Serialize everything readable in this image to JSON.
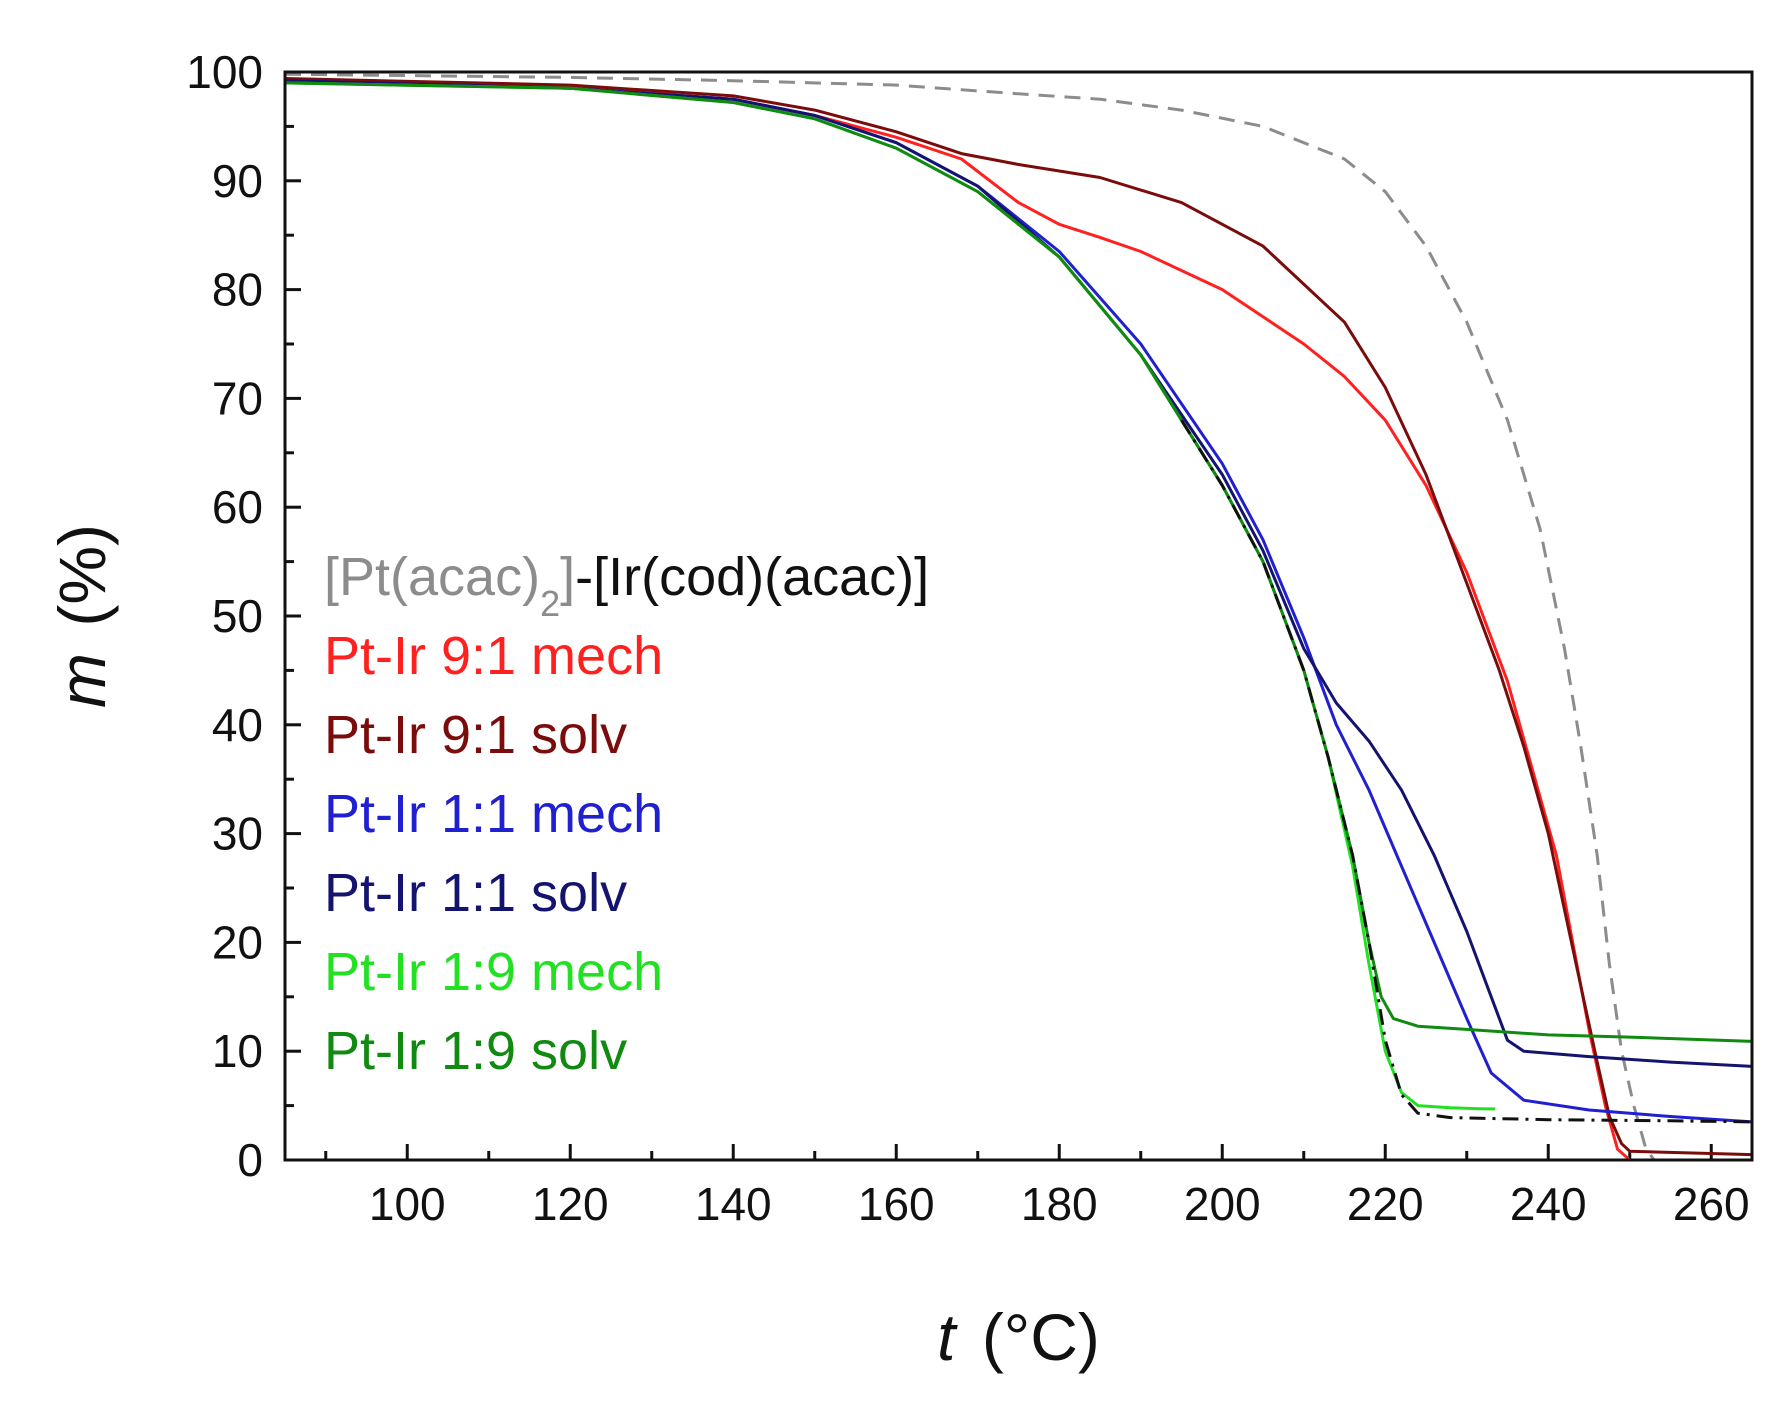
{
  "chart_data": {
    "type": "line",
    "xlabel_var": "t",
    "xlabel_unit": "(°C)",
    "ylabel_var": "m",
    "ylabel_unit": "(%)",
    "xlim": [
      85,
      265
    ],
    "ylim": [
      0,
      100
    ],
    "xticks": [
      100,
      120,
      140,
      160,
      180,
      200,
      220,
      240,
      260
    ],
    "yticks": [
      0,
      10,
      20,
      30,
      40,
      50,
      60,
      70,
      80,
      90,
      100
    ],
    "grid": false,
    "legend_position": "left",
    "legend": [
      {
        "parts": [
          {
            "text": "[Pt(acac)",
            "color": "#8c8c8c"
          },
          {
            "text": "2",
            "color": "#8c8c8c",
            "sub": true
          },
          {
            "text": "]",
            "color": "#8c8c8c"
          },
          {
            "text": "-[Ir(cod)(acac)]",
            "color": "#111111"
          }
        ]
      },
      {
        "parts": [
          {
            "text": "Pt-Ir 9:1 mech",
            "color": "#ff2020"
          }
        ]
      },
      {
        "parts": [
          {
            "text": "Pt-Ir 9:1 solv",
            "color": "#7a0c0c"
          }
        ]
      },
      {
        "parts": [
          {
            "text": "Pt-Ir 1:1 mech",
            "color": "#2020d0"
          }
        ]
      },
      {
        "parts": [
          {
            "text": "Pt-Ir 1:1 solv",
            "color": "#141470"
          }
        ]
      },
      {
        "parts": [
          {
            "text": "Pt-Ir 1:9 mech",
            "color": "#22e022"
          }
        ]
      },
      {
        "parts": [
          {
            "text": "Pt-Ir 1:9 solv",
            "color": "#108a10"
          }
        ]
      }
    ],
    "series": [
      {
        "color": "#8c8c8c",
        "style": "dashed",
        "points": [
          [
            85,
            99.8
          ],
          [
            120,
            99.5
          ],
          [
            140,
            99.2
          ],
          [
            160,
            98.8
          ],
          [
            175,
            98
          ],
          [
            185,
            97.5
          ],
          [
            195,
            96.5
          ],
          [
            205,
            95
          ],
          [
            215,
            92
          ],
          [
            220,
            89
          ],
          [
            225,
            84
          ],
          [
            230,
            77
          ],
          [
            235,
            68
          ],
          [
            239,
            58
          ],
          [
            242,
            47
          ],
          [
            244,
            38
          ],
          [
            246,
            28
          ],
          [
            247.5,
            18
          ],
          [
            249,
            10
          ],
          [
            250.5,
            5
          ],
          [
            252,
            1
          ],
          [
            253,
            0
          ],
          [
            265,
            0
          ]
        ]
      },
      {
        "color": "#ff2020",
        "style": "solid",
        "points": [
          [
            85,
            99.3
          ],
          [
            120,
            98.6
          ],
          [
            140,
            97.5
          ],
          [
            150,
            96
          ],
          [
            160,
            94
          ],
          [
            168,
            92
          ],
          [
            175,
            88
          ],
          [
            180,
            86
          ],
          [
            185,
            84.8
          ],
          [
            190,
            83.5
          ],
          [
            200,
            80
          ],
          [
            210,
            75
          ],
          [
            215,
            72
          ],
          [
            220,
            68
          ],
          [
            225,
            62
          ],
          [
            230,
            54
          ],
          [
            235,
            44
          ],
          [
            238,
            36
          ],
          [
            241,
            28
          ],
          [
            243,
            20
          ],
          [
            245,
            12
          ],
          [
            247,
            5
          ],
          [
            248.5,
            1
          ],
          [
            250,
            0
          ],
          [
            265,
            0
          ]
        ]
      },
      {
        "color": "#7a0c0c",
        "style": "solid",
        "points": [
          [
            85,
            99.4
          ],
          [
            120,
            98.8
          ],
          [
            140,
            97.8
          ],
          [
            150,
            96.5
          ],
          [
            160,
            94.5
          ],
          [
            168,
            92.5
          ],
          [
            175,
            91.5
          ],
          [
            185,
            90.3
          ],
          [
            195,
            88
          ],
          [
            205,
            84
          ],
          [
            215,
            77
          ],
          [
            220,
            71
          ],
          [
            225,
            63
          ],
          [
            230,
            53
          ],
          [
            234,
            45
          ],
          [
            237,
            38
          ],
          [
            240,
            30
          ],
          [
            242,
            23
          ],
          [
            244,
            16
          ],
          [
            246,
            9
          ],
          [
            247.5,
            4
          ],
          [
            249,
            1.5
          ],
          [
            250,
            0.8
          ],
          [
            265,
            0.5
          ]
        ]
      },
      {
        "color": "#2020d0",
        "style": "solid",
        "points": [
          [
            85,
            99.2
          ],
          [
            120,
            98.5
          ],
          [
            140,
            97.5
          ],
          [
            150,
            96
          ],
          [
            160,
            93.5
          ],
          [
            170,
            89.5
          ],
          [
            180,
            83.5
          ],
          [
            190,
            75
          ],
          [
            200,
            64
          ],
          [
            205,
            57
          ],
          [
            210,
            48
          ],
          [
            214,
            40
          ],
          [
            218,
            34
          ],
          [
            222,
            27
          ],
          [
            226,
            20
          ],
          [
            230,
            13
          ],
          [
            233,
            8
          ],
          [
            237,
            5.5
          ],
          [
            245,
            4.6
          ],
          [
            255,
            4
          ],
          [
            265,
            3.5
          ]
        ]
      },
      {
        "color": "#141470",
        "style": "solid",
        "points": [
          [
            85,
            99.2
          ],
          [
            120,
            98.5
          ],
          [
            140,
            97.5
          ],
          [
            150,
            96
          ],
          [
            160,
            93.5
          ],
          [
            170,
            89.5
          ],
          [
            180,
            83
          ],
          [
            190,
            74
          ],
          [
            200,
            63
          ],
          [
            205,
            56
          ],
          [
            210,
            47
          ],
          [
            214,
            42
          ],
          [
            218,
            38.5
          ],
          [
            222,
            34
          ],
          [
            226,
            28
          ],
          [
            230,
            21
          ],
          [
            233,
            15
          ],
          [
            235,
            11
          ],
          [
            237,
            10
          ],
          [
            245,
            9.5
          ],
          [
            255,
            9
          ],
          [
            265,
            8.6
          ]
        ]
      },
      {
        "color": "#22e022",
        "style": "solid",
        "points": [
          [
            85,
            99
          ],
          [
            120,
            98.5
          ],
          [
            140,
            97.2
          ],
          [
            150,
            95.7
          ],
          [
            160,
            93
          ],
          [
            170,
            89
          ],
          [
            180,
            83
          ],
          [
            190,
            74
          ],
          [
            200,
            62
          ],
          [
            205,
            55
          ],
          [
            210,
            45
          ],
          [
            213,
            37
          ],
          [
            216,
            27
          ],
          [
            218,
            18
          ],
          [
            220,
            10
          ],
          [
            222,
            6.2
          ],
          [
            224,
            5
          ],
          [
            228,
            4.8
          ],
          [
            232,
            4.7
          ],
          [
            233.5,
            4.7
          ]
        ]
      },
      {
        "color": "#108a10",
        "style": "solid",
        "points": [
          [
            85,
            99
          ],
          [
            120,
            98.5
          ],
          [
            140,
            97.2
          ],
          [
            150,
            95.7
          ],
          [
            160,
            93
          ],
          [
            170,
            89
          ],
          [
            180,
            83
          ],
          [
            190,
            74
          ],
          [
            200,
            62
          ],
          [
            205,
            55
          ],
          [
            210,
            45
          ],
          [
            213,
            37
          ],
          [
            216,
            28
          ],
          [
            218,
            20
          ],
          [
            219.5,
            15
          ],
          [
            221,
            13
          ],
          [
            224,
            12.3
          ],
          [
            230,
            12
          ],
          [
            240,
            11.5
          ],
          [
            250,
            11.3
          ],
          [
            265,
            10.9
          ]
        ]
      },
      {
        "color": "#111111",
        "style": "dashdot",
        "points": [
          [
            195,
            68
          ],
          [
            200,
            62
          ],
          [
            205,
            55
          ],
          [
            210,
            45
          ],
          [
            213,
            37
          ],
          [
            216,
            28
          ],
          [
            218,
            20
          ],
          [
            220,
            11
          ],
          [
            222,
            6
          ],
          [
            224,
            4.3
          ],
          [
            228,
            3.9
          ],
          [
            240,
            3.7
          ],
          [
            255,
            3.6
          ],
          [
            265,
            3.5
          ]
        ]
      }
    ]
  }
}
